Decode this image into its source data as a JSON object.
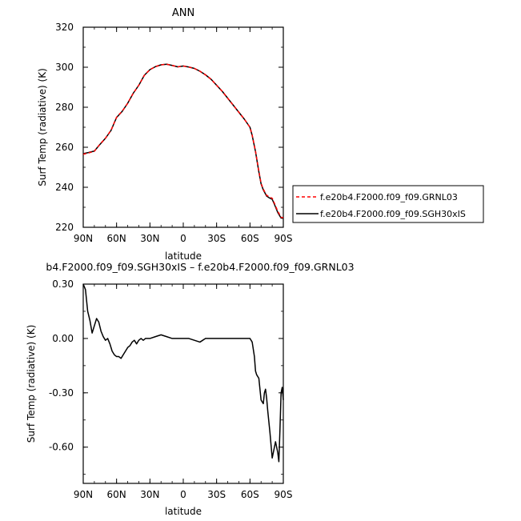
{
  "chart_data": [
    {
      "type": "line",
      "title": "ANN",
      "xlabel": "latitude",
      "ylabel": "Surf Temp (radiative) (K)",
      "x_ticks": [
        {
          "value": -90,
          "label": "90N"
        },
        {
          "value": -60,
          "label": "60N"
        },
        {
          "value": -30,
          "label": "30N"
        },
        {
          "value": 0,
          "label": "0"
        },
        {
          "value": 30,
          "label": "30S"
        },
        {
          "value": 60,
          "label": "60S"
        },
        {
          "value": 90,
          "label": "90S"
        }
      ],
      "y_ticks": [
        220,
        240,
        260,
        280,
        300,
        320
      ],
      "y_tick_labels": [
        "220",
        "240",
        "260",
        "280",
        "300",
        "320"
      ],
      "xlim": [
        -90,
        90
      ],
      "ylim": [
        220,
        320
      ],
      "grid": false,
      "legend_position": "right",
      "series": [
        {
          "name": "f.e20b4.F2000.f09_f09.GRNL03",
          "color": "#ff0000",
          "dash": "dashed",
          "x": [
            -90,
            -85,
            -80,
            -75,
            -70,
            -65,
            -60,
            -55,
            -50,
            -45,
            -40,
            -35,
            -30,
            -25,
            -20,
            -15,
            -10,
            -5,
            0,
            5,
            10,
            15,
            20,
            25,
            30,
            35,
            40,
            45,
            50,
            55,
            60,
            62,
            65,
            68,
            70,
            72,
            75,
            78,
            80,
            82,
            85,
            88,
            90
          ],
          "y": [
            256.5,
            257.2,
            258,
            261.5,
            264.5,
            268.5,
            275,
            278,
            282,
            287,
            291,
            296,
            298.8,
            300.3,
            301.2,
            301.5,
            300.9,
            300.2,
            300.6,
            300.1,
            299.4,
            298.0,
            296.2,
            294.0,
            291.0,
            288.0,
            284.5,
            281.0,
            277.5,
            274.0,
            270,
            266,
            258,
            248,
            242,
            239,
            236,
            235,
            234.5,
            232,
            228,
            225,
            224.8
          ]
        },
        {
          "name": "f.e20b4.F2000.f09_f09.SGH30xIS",
          "color": "#000000",
          "dash": "solid",
          "x": [
            -90,
            -85,
            -80,
            -75,
            -70,
            -65,
            -60,
            -55,
            -50,
            -45,
            -40,
            -35,
            -30,
            -25,
            -20,
            -15,
            -10,
            -5,
            0,
            5,
            10,
            15,
            20,
            25,
            30,
            35,
            40,
            45,
            50,
            55,
            60,
            62,
            65,
            68,
            70,
            72,
            75,
            78,
            80,
            82,
            85,
            88,
            90
          ],
          "y": [
            256.8,
            257.4,
            258.1,
            261.4,
            264.5,
            268.4,
            274.9,
            277.9,
            282,
            287,
            291,
            296,
            298.8,
            300.3,
            301.2,
            301.5,
            300.9,
            300.2,
            300.6,
            300.1,
            299.4,
            298.0,
            296.2,
            294.0,
            291.0,
            288.0,
            284.5,
            281.0,
            277.5,
            274.0,
            270,
            265.9,
            257.8,
            247.7,
            241.7,
            238.7,
            235.6,
            234.5,
            234.0,
            231.5,
            227.4,
            224.6,
            224.5
          ]
        }
      ]
    },
    {
      "type": "line",
      "title": "b4.F2000.f09_f09.SGH30xIS – f.e20b4.F2000.f09_f09.GRNL03",
      "xlabel": "latitude",
      "ylabel": "Surf Temp (radiative) (K)",
      "x_ticks": [
        {
          "value": -90,
          "label": "90N"
        },
        {
          "value": -60,
          "label": "60N"
        },
        {
          "value": -30,
          "label": "30N"
        },
        {
          "value": 0,
          "label": "0"
        },
        {
          "value": 30,
          "label": "30S"
        },
        {
          "value": 60,
          "label": "60S"
        },
        {
          "value": 90,
          "label": "90S"
        }
      ],
      "y_ticks": [
        -0.6,
        -0.3,
        0.0,
        0.3
      ],
      "y_tick_labels": [
        "-0.60",
        "-0.30",
        "0.00",
        "0.30"
      ],
      "xlim": [
        -90,
        90
      ],
      "ylim": [
        -0.8,
        0.3
      ],
      "grid": false,
      "series": [
        {
          "color": "#000000",
          "dash": "solid",
          "x": [
            -90,
            -88,
            -86,
            -84,
            -82,
            -80,
            -78,
            -76,
            -74,
            -72,
            -70,
            -68,
            -66,
            -64,
            -62,
            -60,
            -58,
            -56,
            -54,
            -52,
            -50,
            -48,
            -46,
            -44,
            -42,
            -40,
            -38,
            -36,
            -34,
            -30,
            -25,
            -20,
            -15,
            -10,
            -5,
            0,
            5,
            10,
            15,
            20,
            25,
            30,
            35,
            40,
            45,
            50,
            55,
            60,
            62,
            64,
            65,
            66,
            68,
            70,
            72,
            73,
            74,
            75,
            76,
            78,
            80,
            82,
            83,
            84,
            85,
            86,
            87,
            88,
            89,
            90
          ],
          "y": [
            0.3,
            0.27,
            0.15,
            0.1,
            0.03,
            0.07,
            0.11,
            0.09,
            0.04,
            0.01,
            -0.01,
            0.0,
            -0.03,
            -0.07,
            -0.09,
            -0.1,
            -0.1,
            -0.11,
            -0.09,
            -0.07,
            -0.05,
            -0.04,
            -0.02,
            -0.01,
            -0.03,
            -0.01,
            0.0,
            -0.01,
            0.0,
            0.0,
            0.01,
            0.02,
            0.01,
            0.0,
            0.0,
            0.0,
            0.0,
            -0.01,
            -0.02,
            0.0,
            0.0,
            0.0,
            0.0,
            0.0,
            0.0,
            0.0,
            0.0,
            0.0,
            -0.02,
            -0.1,
            -0.18,
            -0.2,
            -0.22,
            -0.34,
            -0.36,
            -0.3,
            -0.28,
            -0.33,
            -0.4,
            -0.52,
            -0.66,
            -0.6,
            -0.57,
            -0.6,
            -0.63,
            -0.68,
            -0.5,
            -0.3,
            -0.27,
            -0.34
          ]
        }
      ]
    }
  ]
}
